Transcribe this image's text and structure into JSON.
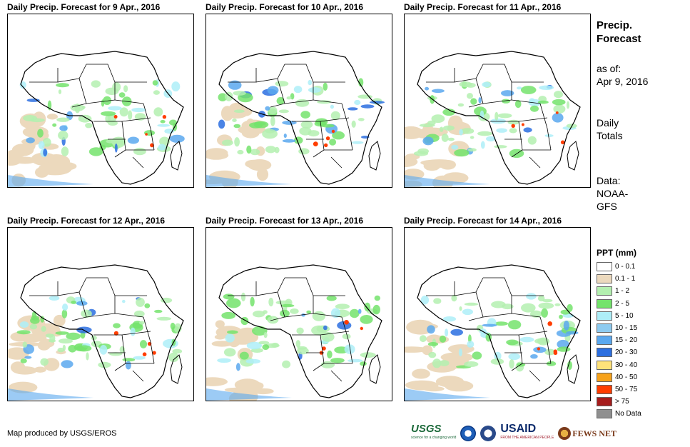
{
  "panels": [
    {
      "title": "Daily Precip. Forecast for 9 Apr., 2016"
    },
    {
      "title": "Daily Precip. Forecast for 10 Apr., 2016"
    },
    {
      "title": "Daily Precip. Forecast for 11 Apr., 2016"
    },
    {
      "title": "Daily Precip. Forecast for 12 Apr., 2016"
    },
    {
      "title": "Daily Precip. Forecast for 13 Apr., 2016"
    },
    {
      "title": "Daily Precip. Forecast for 14 Apr., 2016"
    }
  ],
  "sidebar": {
    "title_line1": "Precip.",
    "title_line2": "Forecast",
    "asof_label": "as of:",
    "asof_date": "Apr 9, 2016",
    "daily_line1": "Daily",
    "daily_line2": "Totals",
    "data_line1": "Data:",
    "data_line2": "NOAA-",
    "data_line3": "GFS"
  },
  "legend": {
    "title": "PPT (mm)",
    "items": [
      {
        "label": "0 - 0.1",
        "color": "#ffffff"
      },
      {
        "label": "0.1 - 1",
        "color": "#ecd9bd"
      },
      {
        "label": "1 - 2",
        "color": "#b4f0b0"
      },
      {
        "label": "2 - 5",
        "color": "#74e36c"
      },
      {
        "label": "5 - 10",
        "color": "#aeeef8"
      },
      {
        "label": "10 - 15",
        "color": "#8ecbf0"
      },
      {
        "label": "15 - 20",
        "color": "#5aa8ef"
      },
      {
        "label": "20 - 30",
        "color": "#2c6fe0"
      },
      {
        "label": "30 - 40",
        "color": "#ffe27a"
      },
      {
        "label": "40 - 50",
        "color": "#f7a21a"
      },
      {
        "label": "50 - 75",
        "color": "#ff3d00"
      },
      {
        "label": "> 75",
        "color": "#a61c1c"
      },
      {
        "label": "No Data",
        "color": "#8f8f8f"
      }
    ]
  },
  "footer": {
    "credit": "Map produced by USGS/EROS",
    "usgs_label": "USGS",
    "usgs_tagline": "science for a changing world",
    "usaid_label": "USAID",
    "usaid_tagline": "FROM THE AMERICAN PEOPLE",
    "fews_label": "FEWS NET"
  }
}
